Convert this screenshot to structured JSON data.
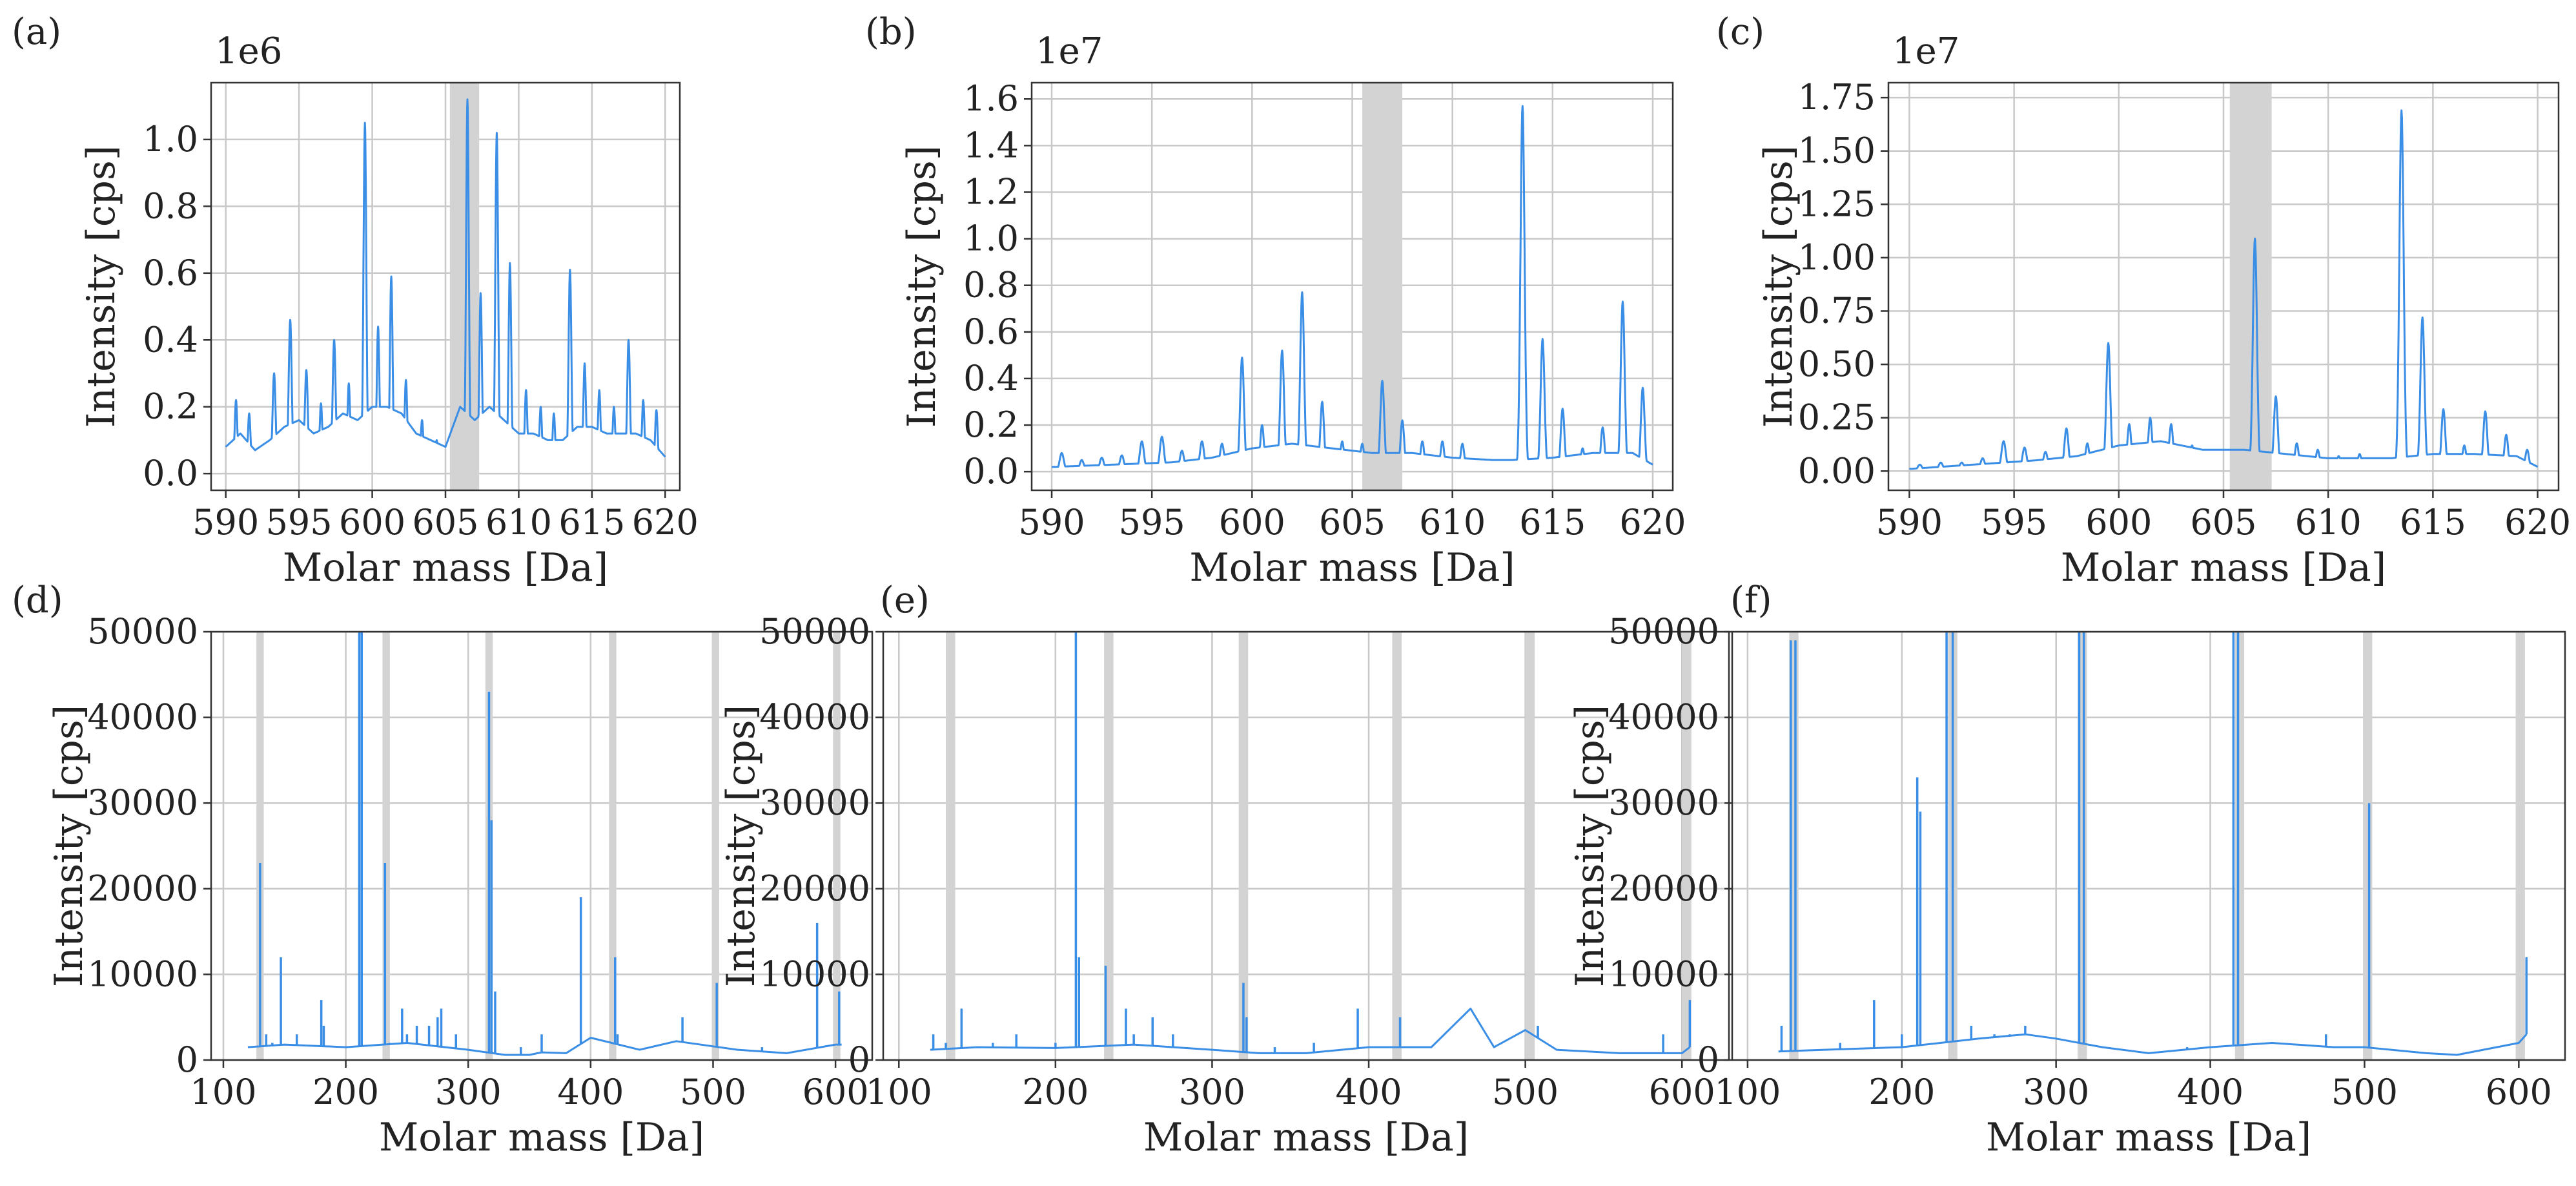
{
  "figure": {
    "description_colors": {
      "series": "#3a8ee6",
      "band": "#d3d3d3",
      "grid": "#c8c8c8"
    }
  },
  "chart_data": [
    {
      "id": "a",
      "label": "(a)",
      "type": "line",
      "xlabel": "Molar mass [Da]",
      "ylabel": "Intensity [cps]",
      "exponent": "1e6",
      "xlim": [
        589,
        621
      ],
      "ylim": [
        -0.05,
        1.17
      ],
      "xticks": [
        590,
        595,
        600,
        605,
        610,
        615,
        620
      ],
      "xtick_labels": [
        "590",
        "595",
        "600",
        "605",
        "610",
        "615",
        "620"
      ],
      "yticks": [
        0.0,
        0.2,
        0.4,
        0.6,
        0.8,
        1.0
      ],
      "ytick_labels": [
        "0.0",
        "0.2",
        "0.4",
        "0.6",
        "0.8",
        "1.0"
      ],
      "bands": [
        [
          605.3,
          607.3
        ]
      ],
      "color": "#3a8ee6",
      "grid": true,
      "baseline": {
        "x": [
          590,
          591,
          592,
          593,
          594,
          595,
          596,
          597,
          598,
          599,
          600,
          601,
          602,
          603,
          604,
          605,
          606,
          607,
          608,
          609,
          610,
          611,
          612,
          613,
          614,
          615,
          616,
          617,
          618,
          619,
          620
        ],
        "y": [
          0.08,
          0.12,
          0.07,
          0.1,
          0.14,
          0.16,
          0.12,
          0.14,
          0.18,
          0.16,
          0.2,
          0.2,
          0.18,
          0.12,
          0.1,
          0.08,
          0.2,
          0.16,
          0.2,
          0.16,
          0.12,
          0.12,
          0.1,
          0.1,
          0.14,
          0.14,
          0.12,
          0.12,
          0.12,
          0.1,
          0.05
        ]
      },
      "peaks": [
        [
          590.7,
          0.22,
          0.22
        ],
        [
          591.6,
          0.18,
          0.22
        ],
        [
          593.3,
          0.3,
          0.25
        ],
        [
          594.4,
          0.46,
          0.25
        ],
        [
          595.5,
          0.31,
          0.25
        ],
        [
          596.5,
          0.21,
          0.22
        ],
        [
          597.4,
          0.4,
          0.25
        ],
        [
          598.4,
          0.27,
          0.22
        ],
        [
          599.5,
          1.05,
          0.23
        ],
        [
          600.4,
          0.44,
          0.22
        ],
        [
          601.3,
          0.59,
          0.22
        ],
        [
          602.3,
          0.28,
          0.22
        ],
        [
          603.4,
          0.16,
          0.22
        ],
        [
          604.4,
          0.1,
          0.22
        ],
        [
          606.5,
          1.12,
          0.22
        ],
        [
          607.4,
          0.54,
          0.22
        ],
        [
          608.5,
          1.02,
          0.23
        ],
        [
          609.4,
          0.63,
          0.22
        ],
        [
          610.5,
          0.25,
          0.22
        ],
        [
          611.5,
          0.2,
          0.22
        ],
        [
          612.4,
          0.18,
          0.22
        ],
        [
          613.5,
          0.61,
          0.23
        ],
        [
          614.5,
          0.33,
          0.22
        ],
        [
          615.5,
          0.25,
          0.22
        ],
        [
          616.5,
          0.2,
          0.22
        ],
        [
          617.5,
          0.4,
          0.23
        ],
        [
          618.5,
          0.22,
          0.22
        ],
        [
          619.4,
          0.19,
          0.22
        ]
      ]
    },
    {
      "id": "b",
      "label": "(b)",
      "type": "line",
      "xlabel": "Molar mass [Da]",
      "ylabel": "Intensity [cps]",
      "exponent": "1e7",
      "xlim": [
        589,
        621
      ],
      "ylim": [
        -0.08,
        1.67
      ],
      "xticks": [
        590,
        595,
        600,
        605,
        610,
        615,
        620
      ],
      "xtick_labels": [
        "590",
        "595",
        "600",
        "605",
        "610",
        "615",
        "620"
      ],
      "yticks": [
        0.0,
        0.2,
        0.4,
        0.6,
        0.8,
        1.0,
        1.2,
        1.4,
        1.6
      ],
      "ytick_labels": [
        "0.0",
        "0.2",
        "0.4",
        "0.6",
        "0.8",
        "1.0",
        "1.2",
        "1.4",
        "1.6"
      ],
      "bands": [
        [
          605.5,
          607.5
        ]
      ],
      "color": "#3a8ee6",
      "grid": true,
      "baseline": {
        "x": [
          590,
          593,
          596,
          598,
          600,
          602,
          604,
          606,
          608,
          610,
          612,
          613,
          615,
          617,
          619,
          620
        ],
        "y": [
          0.02,
          0.03,
          0.04,
          0.06,
          0.1,
          0.12,
          0.1,
          0.08,
          0.08,
          0.06,
          0.05,
          0.05,
          0.06,
          0.08,
          0.08,
          0.03
        ]
      },
      "peaks": [
        [
          590.5,
          0.08,
          0.25
        ],
        [
          591.5,
          0.05,
          0.25
        ],
        [
          592.5,
          0.06,
          0.25
        ],
        [
          593.5,
          0.07,
          0.25
        ],
        [
          594.5,
          0.13,
          0.25
        ],
        [
          595.5,
          0.15,
          0.25
        ],
        [
          596.5,
          0.09,
          0.25
        ],
        [
          597.5,
          0.13,
          0.25
        ],
        [
          598.5,
          0.12,
          0.25
        ],
        [
          599.5,
          0.49,
          0.23
        ],
        [
          600.5,
          0.2,
          0.22
        ],
        [
          601.5,
          0.52,
          0.23
        ],
        [
          602.5,
          0.77,
          0.23
        ],
        [
          603.5,
          0.3,
          0.22
        ],
        [
          604.5,
          0.13,
          0.22
        ],
        [
          605.5,
          0.12,
          0.22
        ],
        [
          606.5,
          0.39,
          0.23
        ],
        [
          607.5,
          0.22,
          0.22
        ],
        [
          608.5,
          0.13,
          0.22
        ],
        [
          609.5,
          0.13,
          0.22
        ],
        [
          610.5,
          0.12,
          0.22
        ],
        [
          613.5,
          1.57,
          0.24
        ],
        [
          614.5,
          0.57,
          0.23
        ],
        [
          615.5,
          0.27,
          0.22
        ],
        [
          616.5,
          0.1,
          0.22
        ],
        [
          617.5,
          0.19,
          0.22
        ],
        [
          618.5,
          0.73,
          0.23
        ],
        [
          619.5,
          0.36,
          0.22
        ]
      ]
    },
    {
      "id": "c",
      "label": "(c)",
      "type": "line",
      "xlabel": "Molar mass [Da]",
      "ylabel": "Intensity [cps]",
      "exponent": "1e7",
      "xlim": [
        589,
        621
      ],
      "ylim": [
        -0.09,
        1.82
      ],
      "xticks": [
        590,
        595,
        600,
        605,
        610,
        615,
        620
      ],
      "xtick_labels": [
        "590",
        "595",
        "600",
        "605",
        "610",
        "615",
        "620"
      ],
      "yticks": [
        0.0,
        0.25,
        0.5,
        0.75,
        1.0,
        1.25,
        1.5,
        1.75
      ],
      "ytick_labels": [
        "0.00",
        "0.25",
        "0.50",
        "0.75",
        "1.00",
        "1.25",
        "1.50",
        "1.75"
      ],
      "bands": [
        [
          605.3,
          607.3
        ]
      ],
      "color": "#3a8ee6",
      "grid": true,
      "baseline": {
        "x": [
          590,
          593,
          596,
          598,
          600,
          602,
          604,
          606,
          608,
          610,
          612,
          613,
          615,
          617,
          619,
          620
        ],
        "y": [
          0.01,
          0.03,
          0.05,
          0.07,
          0.12,
          0.14,
          0.1,
          0.1,
          0.08,
          0.06,
          0.06,
          0.06,
          0.08,
          0.08,
          0.07,
          0.02
        ]
      },
      "peaks": [
        [
          590.5,
          0.03,
          0.25
        ],
        [
          591.5,
          0.04,
          0.25
        ],
        [
          592.5,
          0.04,
          0.25
        ],
        [
          593.5,
          0.06,
          0.25
        ],
        [
          594.5,
          0.14,
          0.25
        ],
        [
          595.5,
          0.11,
          0.25
        ],
        [
          596.5,
          0.09,
          0.25
        ],
        [
          597.5,
          0.2,
          0.23
        ],
        [
          598.5,
          0.13,
          0.22
        ],
        [
          599.5,
          0.6,
          0.23
        ],
        [
          600.5,
          0.22,
          0.22
        ],
        [
          601.5,
          0.25,
          0.22
        ],
        [
          602.5,
          0.22,
          0.22
        ],
        [
          603.5,
          0.12,
          0.22
        ],
        [
          604.5,
          0.05,
          0.22
        ],
        [
          606.5,
          1.09,
          0.23
        ],
        [
          607.5,
          0.35,
          0.22
        ],
        [
          608.5,
          0.13,
          0.22
        ],
        [
          609.5,
          0.1,
          0.22
        ],
        [
          610.5,
          0.07,
          0.22
        ],
        [
          611.5,
          0.08,
          0.22
        ],
        [
          613.5,
          1.69,
          0.24
        ],
        [
          614.5,
          0.72,
          0.23
        ],
        [
          615.5,
          0.29,
          0.22
        ],
        [
          616.5,
          0.12,
          0.22
        ],
        [
          617.5,
          0.28,
          0.22
        ],
        [
          618.5,
          0.17,
          0.22
        ],
        [
          619.5,
          0.1,
          0.22
        ]
      ]
    },
    {
      "id": "d",
      "label": "(d)",
      "type": "line",
      "xlabel": "Molar mass [Da]",
      "ylabel": "Intensity [cps]",
      "xlim": [
        90,
        630
      ],
      "ylim": [
        0,
        50000
      ],
      "xticks": [
        100,
        200,
        300,
        400,
        500,
        600
      ],
      "xtick_labels": [
        "100",
        "200",
        "300",
        "400",
        "500",
        "600"
      ],
      "yticks": [
        0,
        10000,
        20000,
        30000,
        40000,
        50000
      ],
      "ytick_labels": [
        "0",
        "10000",
        "20000",
        "30000",
        "40000",
        "50000"
      ],
      "bands": [
        [
          127,
          133
        ],
        [
          230,
          236
        ],
        [
          314,
          320
        ],
        [
          415,
          421
        ],
        [
          499,
          505
        ],
        [
          598,
          604
        ]
      ],
      "color": "#3a8ee6",
      "grid": true,
      "baseline": {
        "x": [
          120,
          150,
          200,
          250,
          300,
          330,
          350,
          360,
          380,
          400,
          440,
          470,
          500,
          520,
          560,
          600,
          605
        ],
        "y": [
          1500,
          1800,
          1500,
          2000,
          1200,
          600,
          600,
          900,
          800,
          2600,
          1200,
          2200,
          1600,
          1200,
          800,
          1800,
          1800
        ]
      },
      "spikes": [
        [
          130,
          23000
        ],
        [
          135,
          3000
        ],
        [
          140,
          2000
        ],
        [
          147,
          12000
        ],
        [
          160,
          3000
        ],
        [
          180,
          7000
        ],
        [
          182,
          4000
        ],
        [
          200,
          1500
        ],
        [
          211,
          50000
        ],
        [
          213,
          50000
        ],
        [
          232,
          23000
        ],
        [
          236,
          2000
        ],
        [
          246,
          6000
        ],
        [
          250,
          3000
        ],
        [
          258,
          4000
        ],
        [
          268,
          4000
        ],
        [
          275,
          5000
        ],
        [
          278,
          6000
        ],
        [
          290,
          3000
        ],
        [
          317,
          43000
        ],
        [
          319,
          28000
        ],
        [
          322,
          8000
        ],
        [
          343,
          1500
        ],
        [
          360,
          3000
        ],
        [
          392,
          19000
        ],
        [
          420,
          12000
        ],
        [
          422,
          3000
        ],
        [
          475,
          5000
        ],
        [
          503,
          9000
        ],
        [
          540,
          1500
        ],
        [
          585,
          16000
        ],
        [
          603,
          8000
        ]
      ]
    },
    {
      "id": "e",
      "label": "(e)",
      "type": "line",
      "xlabel": "Molar mass [Da]",
      "ylabel": "Intensity [cps]",
      "xlim": [
        90,
        630
      ],
      "ylim": [
        0,
        50000
      ],
      "xticks": [
        100,
        200,
        300,
        400,
        500,
        600
      ],
      "xtick_labels": [
        "100",
        "200",
        "300",
        "400",
        "500",
        "600"
      ],
      "yticks": [
        0,
        10000,
        20000,
        30000,
        40000,
        50000
      ],
      "ytick_labels": [
        "0",
        "10000",
        "20000",
        "30000",
        "40000",
        "50000"
      ],
      "bands": [
        [
          130,
          136
        ],
        [
          231,
          237
        ],
        [
          317,
          323
        ],
        [
          415,
          421
        ],
        [
          500,
          506
        ],
        [
          600,
          606
        ]
      ],
      "color": "#3a8ee6",
      "grid": true,
      "baseline": {
        "x": [
          120,
          150,
          200,
          250,
          300,
          330,
          360,
          400,
          440,
          465,
          480,
          500,
          520,
          560,
          600,
          605
        ],
        "y": [
          1200,
          1500,
          1400,
          1800,
          1200,
          800,
          800,
          1500,
          1500,
          6000,
          1500,
          3500,
          1200,
          800,
          800,
          1500
        ]
      },
      "spikes": [
        [
          122,
          3000
        ],
        [
          130,
          2000
        ],
        [
          140,
          6000
        ],
        [
          160,
          2000
        ],
        [
          175,
          3000
        ],
        [
          200,
          2000
        ],
        [
          213,
          50000
        ],
        [
          215,
          12000
        ],
        [
          232,
          11000
        ],
        [
          245,
          6000
        ],
        [
          250,
          3000
        ],
        [
          262,
          5000
        ],
        [
          275,
          3000
        ],
        [
          320,
          9000
        ],
        [
          322,
          5000
        ],
        [
          340,
          1500
        ],
        [
          365,
          2000
        ],
        [
          393,
          6000
        ],
        [
          420,
          5000
        ],
        [
          508,
          4000
        ],
        [
          588,
          3000
        ],
        [
          605,
          7000
        ]
      ]
    },
    {
      "id": "f",
      "label": "(f)",
      "type": "line",
      "xlabel": "Molar mass [Da]",
      "ylabel": "Intensity [cps]",
      "xlim": [
        90,
        630
      ],
      "ylim": [
        0,
        50000
      ],
      "xticks": [
        100,
        200,
        300,
        400,
        500,
        600
      ],
      "xtick_labels": [
        "100",
        "200",
        "300",
        "400",
        "500",
        "600"
      ],
      "yticks": [
        0,
        10000,
        20000,
        30000,
        40000,
        50000
      ],
      "ytick_labels": [
        "0",
        "10000",
        "20000",
        "30000",
        "40000",
        "50000"
      ],
      "bands": [
        [
          127,
          133
        ],
        [
          230,
          236
        ],
        [
          314,
          320
        ],
        [
          416,
          422
        ],
        [
          499,
          505
        ],
        [
          598,
          604
        ]
      ],
      "color": "#3a8ee6",
      "grid": true,
      "baseline": {
        "x": [
          120,
          150,
          200,
          250,
          280,
          300,
          330,
          360,
          400,
          440,
          480,
          500,
          540,
          560,
          600,
          605
        ],
        "y": [
          1000,
          1200,
          1500,
          2500,
          3000,
          2500,
          1500,
          800,
          1500,
          2000,
          1500,
          1500,
          800,
          600,
          2000,
          3000
        ]
      },
      "spikes": [
        [
          122,
          4000
        ],
        [
          128,
          49000
        ],
        [
          131,
          49000
        ],
        [
          160,
          2000
        ],
        [
          182,
          7000
        ],
        [
          200,
          3000
        ],
        [
          210,
          33000
        ],
        [
          212,
          29000
        ],
        [
          229,
          50000
        ],
        [
          233,
          50000
        ],
        [
          245,
          4000
        ],
        [
          260,
          3000
        ],
        [
          270,
          3000
        ],
        [
          280,
          4000
        ],
        [
          315,
          50000
        ],
        [
          318,
          50000
        ],
        [
          385,
          1500
        ],
        [
          415,
          50000
        ],
        [
          418,
          50000
        ],
        [
          475,
          3000
        ],
        [
          503,
          30000
        ],
        [
          605,
          12000
        ]
      ]
    }
  ]
}
